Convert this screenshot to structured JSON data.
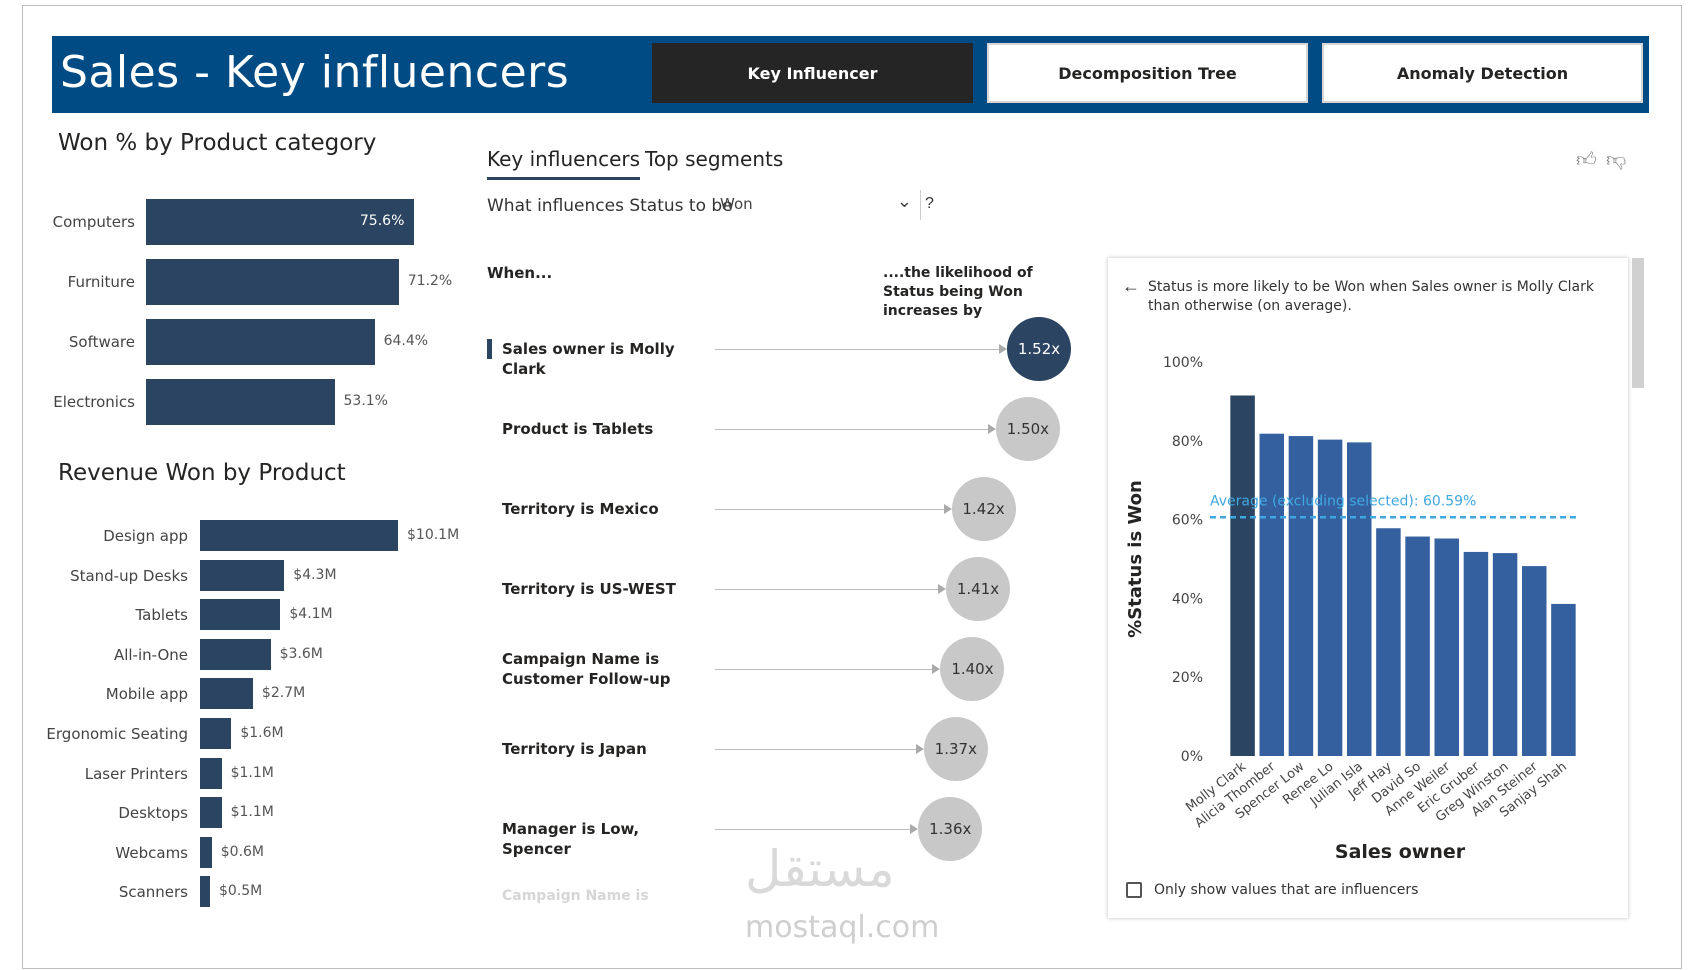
{
  "header": {
    "title": "Sales - Key influencers",
    "nav": [
      "Key Influencer",
      "Decomposition Tree",
      "Anomaly Detection"
    ],
    "active_nav": 0
  },
  "won_by_category": {
    "title": "Won % by Product category",
    "items": [
      {
        "label": "Computers",
        "value": 75.6,
        "text": "75.6%"
      },
      {
        "label": "Furniture",
        "value": 71.2,
        "text": "71.2%"
      },
      {
        "label": "Software",
        "value": 64.4,
        "text": "64.4%"
      },
      {
        "label": "Electronics",
        "value": 53.1,
        "text": "53.1%"
      }
    ]
  },
  "revenue_by_product": {
    "title": "Revenue Won by Product",
    "items": [
      {
        "label": "Design app",
        "value": 10.1,
        "text": "$10.1M"
      },
      {
        "label": "Stand-up Desks",
        "value": 4.3,
        "text": "$4.3M"
      },
      {
        "label": "Tablets",
        "value": 4.1,
        "text": "$4.1M"
      },
      {
        "label": "All-in-One",
        "value": 3.6,
        "text": "$3.6M"
      },
      {
        "label": "Mobile app",
        "value": 2.7,
        "text": "$2.7M"
      },
      {
        "label": "Ergonomic Seating",
        "value": 1.6,
        "text": "$1.6M"
      },
      {
        "label": "Laser Printers",
        "value": 1.1,
        "text": "$1.1M"
      },
      {
        "label": "Desktops",
        "value": 1.1,
        "text": "$1.1M"
      },
      {
        "label": "Webcams",
        "value": 0.6,
        "text": "$0.6M"
      },
      {
        "label": "Scanners",
        "value": 0.5,
        "text": "$0.5M"
      }
    ]
  },
  "influencers": {
    "tabs": [
      "Key influencers",
      "Top segments"
    ],
    "question": "What influences Status to be",
    "dropdown_value": "Won",
    "help": "?",
    "col_when": "When...",
    "col_likely": "....the likelihood of Status being Won increases by",
    "rows": [
      {
        "label": "Sales owner is Molly Clark",
        "value": 1.52,
        "text": "1.52x",
        "selected": true
      },
      {
        "label": "Product is Tablets",
        "value": 1.5,
        "text": "1.50x",
        "selected": false
      },
      {
        "label": "Territory is Mexico",
        "value": 1.42,
        "text": "1.42x",
        "selected": false
      },
      {
        "label": "Territory is US-WEST",
        "value": 1.41,
        "text": "1.41x",
        "selected": false
      },
      {
        "label": "Campaign Name is Customer Follow-up",
        "value": 1.4,
        "text": "1.40x",
        "selected": false
      },
      {
        "label": "Territory is Japan",
        "value": 1.37,
        "text": "1.37x",
        "selected": false
      },
      {
        "label": "Manager is Low, Spencer",
        "value": 1.36,
        "text": "1.36x",
        "selected": false
      }
    ],
    "faded_row": "Campaign Name is"
  },
  "detail": {
    "description": "Status is more likely to be Won when Sales owner is Molly Clark than otherwise (on average).",
    "checkbox_label": "Only show values that are influencers",
    "colors": {
      "selected": "#2b4461",
      "bar": "#3560a0",
      "average": "#3fa8e0"
    }
  },
  "chart_data": {
    "type": "bar",
    "categories": [
      "Molly Clark",
      "Alicia Thomber",
      "Spencer Low",
      "Renee Lo",
      "Julian Isla",
      "Jeff Hay",
      "David So",
      "Anne Weiler",
      "Eric Gruber",
      "Greg Winston",
      "Alan Steiner",
      "Sanjay Shah"
    ],
    "values": [
      91.5,
      81.8,
      81.2,
      80.3,
      79.6,
      57.8,
      55.7,
      55.2,
      51.8,
      51.5,
      48.2,
      38.6
    ],
    "xlabel": "Sales owner",
    "ylabel": "%Status is Won",
    "ylim": [
      0,
      100
    ],
    "yticks": [
      "0%",
      "20%",
      "40%",
      "60%",
      "80%",
      "100%"
    ],
    "average_label": "Average (excluding selected): 60.59%",
    "average": 60.59,
    "selected_index": 0
  },
  "watermark": {
    "arabic": "مستقل",
    "latin": "mostaql.com"
  }
}
